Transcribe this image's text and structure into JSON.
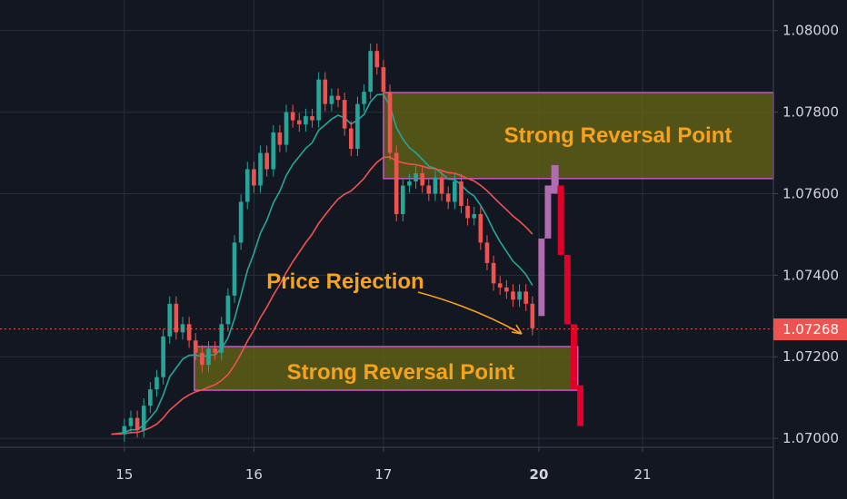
{
  "colors": {
    "background": "#131722",
    "grid": "#2a2e39",
    "axis_text": "#d1d4dc",
    "bull": "#26a69a",
    "bear": "#ef5350",
    "zone_fill": "#6b6b12",
    "zone_border": "#c855c8",
    "annotation": "#f7a21b",
    "ema_fast": "#26a69a",
    "ema_slow": "#ef5350",
    "price_tag": "#ef5350",
    "projection_bull": "#b06cb0",
    "projection_bear": "#e0002a"
  },
  "chart_data": {
    "type": "candlestick",
    "y_axis_ticks": [
      "1.08000",
      "1.07800",
      "1.07600",
      "1.07400",
      "1.07200",
      "1.07000"
    ],
    "y_tick_values": [
      1.08,
      1.078,
      1.076,
      1.074,
      1.072,
      1.07
    ],
    "ylim": [
      1.06978,
      1.08075
    ],
    "x_axis_ticks": [
      {
        "label": "15",
        "t": 0,
        "bold": false
      },
      {
        "label": "16",
        "t": 1,
        "bold": false
      },
      {
        "label": "17",
        "t": 2,
        "bold": false
      },
      {
        "label": "20",
        "t": 3.2,
        "bold": true
      },
      {
        "label": "21",
        "t": 4,
        "bold": false
      }
    ],
    "xlim": [
      -0.96,
      5.01
    ],
    "current_price": "1.07268",
    "current_price_value": 1.07268,
    "close_series": [
      [
        -0.1,
        1.0701
      ],
      [
        0.0,
        1.0703
      ],
      [
        0.05,
        1.0705
      ],
      [
        0.1,
        1.0702
      ],
      [
        0.15,
        1.0708
      ],
      [
        0.2,
        1.0712
      ],
      [
        0.25,
        1.0715
      ],
      [
        0.3,
        1.0725
      ],
      [
        0.35,
        1.0733
      ],
      [
        0.4,
        1.0726
      ],
      [
        0.45,
        1.0728
      ],
      [
        0.5,
        1.0724
      ],
      [
        0.55,
        1.0721
      ],
      [
        0.6,
        1.0718
      ],
      [
        0.65,
        1.0722
      ],
      [
        0.7,
        1.0721
      ],
      [
        0.75,
        1.0728
      ],
      [
        0.8,
        1.0735
      ],
      [
        0.85,
        1.0748
      ],
      [
        0.9,
        1.0758
      ],
      [
        0.95,
        1.0766
      ],
      [
        1.0,
        1.0762
      ],
      [
        1.05,
        1.077
      ],
      [
        1.1,
        1.0766
      ],
      [
        1.15,
        1.0775
      ],
      [
        1.2,
        1.0772
      ],
      [
        1.25,
        1.078
      ],
      [
        1.3,
        1.0778
      ],
      [
        1.35,
        1.0777
      ],
      [
        1.4,
        1.0779
      ],
      [
        1.45,
        1.0778
      ],
      [
        1.5,
        1.0788
      ],
      [
        1.55,
        1.0782
      ],
      [
        1.6,
        1.0784
      ],
      [
        1.65,
        1.0783
      ],
      [
        1.7,
        1.0776
      ],
      [
        1.75,
        1.0771
      ],
      [
        1.8,
        1.0782
      ],
      [
        1.85,
        1.0785
      ],
      [
        1.9,
        1.0795
      ],
      [
        1.95,
        1.0791
      ],
      [
        2.0,
        1.0785
      ],
      [
        2.05,
        1.077
      ],
      [
        2.1,
        1.0755
      ],
      [
        2.15,
        1.0762
      ],
      [
        2.2,
        1.0763
      ],
      [
        2.25,
        1.0765
      ],
      [
        2.3,
        1.0762
      ],
      [
        2.35,
        1.076
      ],
      [
        2.4,
        1.0764
      ],
      [
        2.45,
        1.076
      ],
      [
        2.5,
        1.0758
      ],
      [
        2.55,
        1.0763
      ],
      [
        2.6,
        1.0757
      ],
      [
        2.65,
        1.0754
      ],
      [
        2.7,
        1.0755
      ],
      [
        2.75,
        1.0748
      ],
      [
        2.8,
        1.0743
      ],
      [
        2.85,
        1.0738
      ],
      [
        2.9,
        1.0737
      ],
      [
        2.95,
        1.0736
      ],
      [
        3.0,
        1.0734
      ],
      [
        3.05,
        1.0736
      ],
      [
        3.1,
        1.0733
      ],
      [
        3.15,
        1.0727
      ]
    ],
    "projection": [
      {
        "t": 3.22,
        "open": 1.073,
        "close": 1.0749,
        "dir": "up"
      },
      {
        "t": 3.27,
        "open": 1.0749,
        "close": 1.0762,
        "dir": "up"
      },
      {
        "t": 3.32,
        "open": 1.076,
        "close": 1.0767,
        "dir": "up"
      },
      {
        "t": 3.37,
        "open": 1.0762,
        "close": 1.0745,
        "dir": "down"
      },
      {
        "t": 3.42,
        "open": 1.0745,
        "close": 1.0728,
        "dir": "down"
      },
      {
        "t": 3.47,
        "open": 1.0728,
        "close": 1.0712,
        "dir": "down"
      },
      {
        "t": 3.52,
        "open": 1.0713,
        "close": 1.0703,
        "dir": "down"
      }
    ],
    "zones": [
      {
        "label": "Strong Reversal Point",
        "t_start": 2.0,
        "t_end": 5.01,
        "top": 1.07848,
        "bottom": 1.07637
      },
      {
        "label": "Strong Reversal Point",
        "t_start": 0.54,
        "t_end": 3.5,
        "top": 1.07225,
        "bottom": 1.07118
      }
    ],
    "annotations": [
      {
        "text": "Price Rejection"
      }
    ]
  }
}
